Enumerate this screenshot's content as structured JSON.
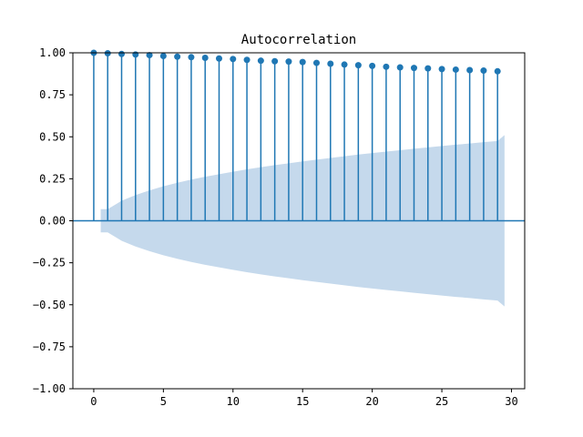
{
  "chart_data": {
    "type": "stem",
    "title": "Autocorrelation",
    "xlabel": "",
    "ylabel": "",
    "xlim": [
      -1.5,
      30.95
    ],
    "ylim": [
      -1.0,
      1.0
    ],
    "xticks": [
      0,
      5,
      10,
      15,
      20,
      25,
      30
    ],
    "xtick_labels": [
      "0",
      "5",
      "10",
      "15",
      "20",
      "25",
      "30"
    ],
    "yticks": [
      -1.0,
      -0.75,
      -0.5,
      -0.25,
      0.0,
      0.25,
      0.5,
      0.75,
      1.0
    ],
    "ytick_labels": [
      "−1.00",
      "−0.75",
      "−0.50",
      "−0.25",
      "0.00",
      "0.25",
      "0.50",
      "0.75",
      "1.00"
    ],
    "series": [
      {
        "name": "acf",
        "lags": [
          0,
          1,
          2,
          3,
          4,
          5,
          6,
          7,
          8,
          9,
          10,
          11,
          12,
          13,
          14,
          15,
          16,
          17,
          18,
          19,
          20,
          21,
          22,
          23,
          24,
          25,
          26,
          27,
          28,
          29
        ],
        "values": [
          1.0,
          0.997,
          0.993,
          0.99,
          0.986,
          0.981,
          0.977,
          0.974,
          0.97,
          0.966,
          0.963,
          0.958,
          0.953,
          0.95,
          0.948,
          0.945,
          0.94,
          0.935,
          0.93,
          0.926,
          0.922,
          0.917,
          0.913,
          0.91,
          0.907,
          0.903,
          0.9,
          0.897,
          0.894,
          0.89
        ]
      }
    ],
    "confidence_band": {
      "lags": [
        0.5,
        1,
        2,
        3,
        4,
        5,
        6,
        7,
        8,
        9,
        10,
        11,
        12,
        13,
        14,
        15,
        16,
        17,
        18,
        19,
        20,
        21,
        22,
        23,
        24,
        25,
        26,
        27,
        28,
        29,
        29.5
      ],
      "upper": [
        0.069,
        0.069,
        0.119,
        0.153,
        0.181,
        0.205,
        0.226,
        0.245,
        0.262,
        0.277,
        0.292,
        0.306,
        0.319,
        0.331,
        0.342,
        0.354,
        0.364,
        0.374,
        0.384,
        0.394,
        0.403,
        0.412,
        0.42,
        0.429,
        0.437,
        0.445,
        0.453,
        0.46,
        0.468,
        0.475,
        0.51
      ]
    },
    "colors": {
      "stem": "#1f77b4",
      "band": "#c5d9ec",
      "zero_line": "#1f77b4"
    }
  }
}
